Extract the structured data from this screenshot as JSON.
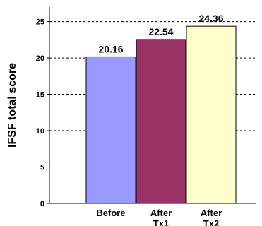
{
  "chart_data": {
    "type": "bar",
    "title": "",
    "xlabel": "",
    "ylabel": "IFSF total score",
    "categories": [
      [
        "Before"
      ],
      [
        "After",
        "Tx1"
      ],
      [
        "After",
        "Tx2"
      ]
    ],
    "values": [
      20.16,
      22.54,
      24.36
    ],
    "value_labels": [
      "20.16",
      "22.54",
      "24.36"
    ],
    "bar_colors": [
      "#9999FF",
      "#993366",
      "#FFFFCC"
    ],
    "ylim": [
      0,
      27
    ],
    "yticks": [
      0,
      5,
      10,
      15,
      20,
      25
    ],
    "ytick_labels": [
      "0",
      "5",
      "10",
      "15",
      "20",
      "25"
    ],
    "grid": "horizontal-dashed",
    "legend": "none"
  }
}
